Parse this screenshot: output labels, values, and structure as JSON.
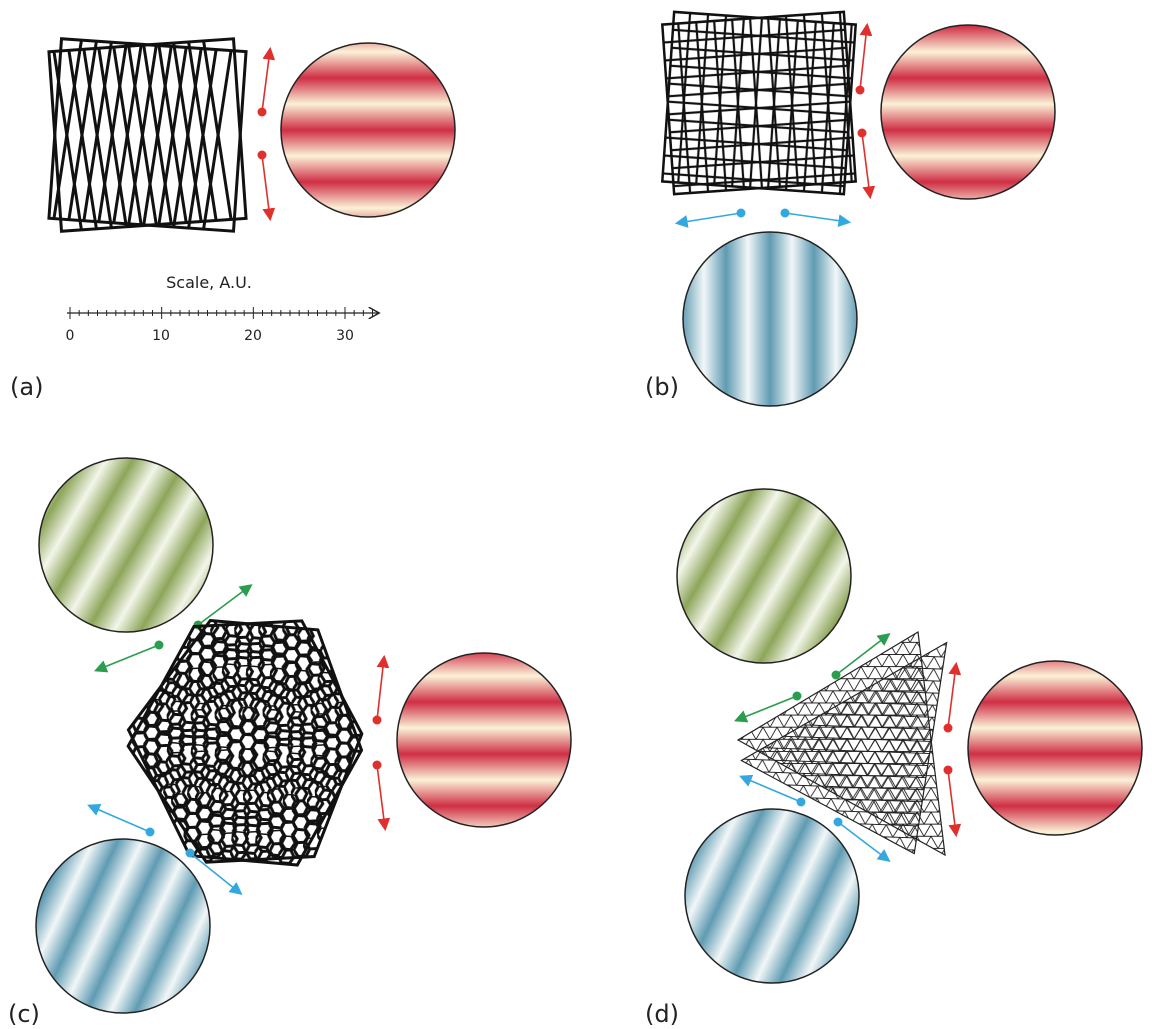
{
  "panels": [
    {
      "id": "a",
      "label": "(a)",
      "lattice": "square-rotated"
    },
    {
      "id": "b",
      "label": "(b)",
      "lattice": "square-grid"
    },
    {
      "id": "c",
      "label": "(c)",
      "lattice": "hexagonal"
    },
    {
      "id": "d",
      "label": "(d)",
      "lattice": "triangular"
    }
  ],
  "scale": {
    "title": "Scale, A.U.",
    "ticks": [
      "0",
      "10",
      "20",
      "30"
    ],
    "max": 33
  },
  "colors": {
    "red": "#cf2e45",
    "blue": "#5f9bb2",
    "green": "#8da55a",
    "cream": "#fbf2d8",
    "line": "#111111",
    "arrow_red": "#e0302e",
    "arrow_blue": "#33a8e0",
    "arrow_green": "#2a9d4e"
  }
}
